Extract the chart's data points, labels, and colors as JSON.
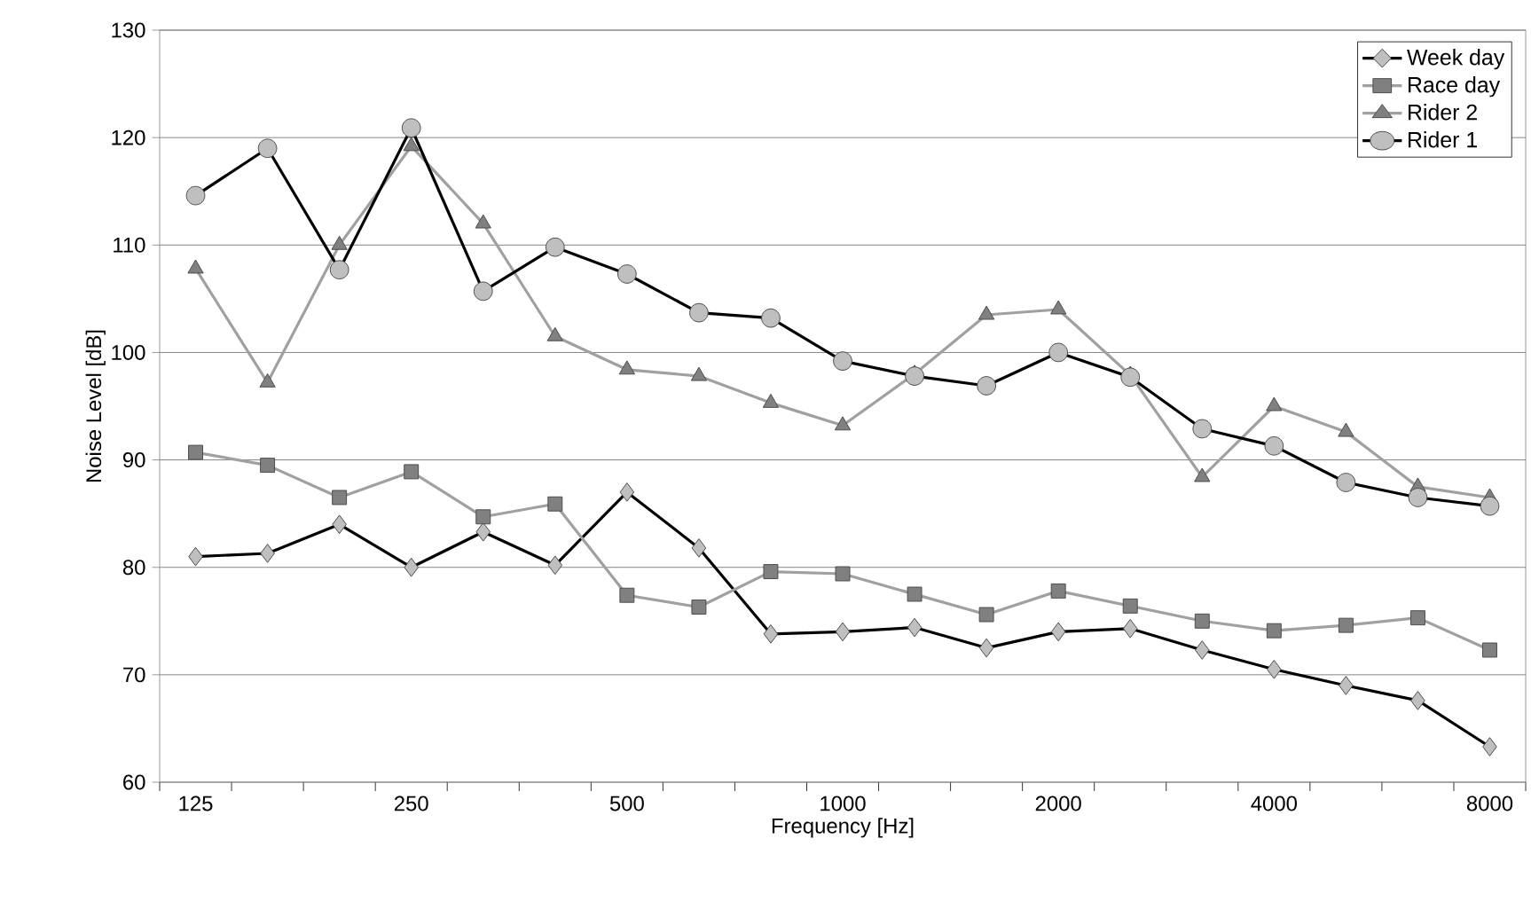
{
  "chart_data": {
    "type": "line",
    "xlabel": "Frequency [Hz]",
    "ylabel": "Noise Level [dB]",
    "categories": [
      "125",
      null,
      null,
      "250",
      null,
      null,
      "500",
      null,
      null,
      "1000",
      null,
      null,
      "2000",
      null,
      null,
      "4000",
      null,
      null,
      "8000"
    ],
    "ylim": [
      60,
      130
    ],
    "yticks": [
      60,
      70,
      80,
      90,
      100,
      110,
      120,
      130
    ],
    "grid": "y",
    "legend": "top right",
    "line_style": "solid",
    "series": [
      {
        "name": "Week day",
        "color": "#000000",
        "marker": "diamond",
        "values": [
          81,
          81.3,
          84,
          80,
          83.3,
          80.2,
          87,
          81.8,
          73.8,
          74,
          74.4,
          72.5,
          74,
          74.3,
          72.3,
          70.5,
          69,
          67.6,
          63.3
        ]
      },
      {
        "name": "Race day",
        "color": "#a0a0a0",
        "marker": "square",
        "values": [
          90.7,
          89.5,
          86.5,
          88.9,
          84.7,
          85.9,
          77.4,
          76.3,
          79.6,
          79.4,
          77.5,
          75.6,
          77.8,
          76.4,
          75,
          74.1,
          74.6,
          75.3,
          72.3
        ]
      },
      {
        "name": "Rider 2",
        "color": "#a0a0a0",
        "marker": "triangle",
        "values": [
          107.8,
          97.2,
          110,
          119.2,
          112,
          101.5,
          98.4,
          97.8,
          95.3,
          93.2,
          98,
          103.5,
          104,
          97.9,
          88.4,
          95,
          92.6,
          87.5,
          86.5
        ]
      },
      {
        "name": "Rider 1",
        "color": "#000000",
        "marker": "circle",
        "values": [
          114.6,
          119,
          107.7,
          120.9,
          105.7,
          109.8,
          107.3,
          103.7,
          103.2,
          99.2,
          97.8,
          96.9,
          100,
          97.7,
          92.9,
          91.3,
          87.9,
          86.5,
          85.7
        ]
      }
    ]
  }
}
